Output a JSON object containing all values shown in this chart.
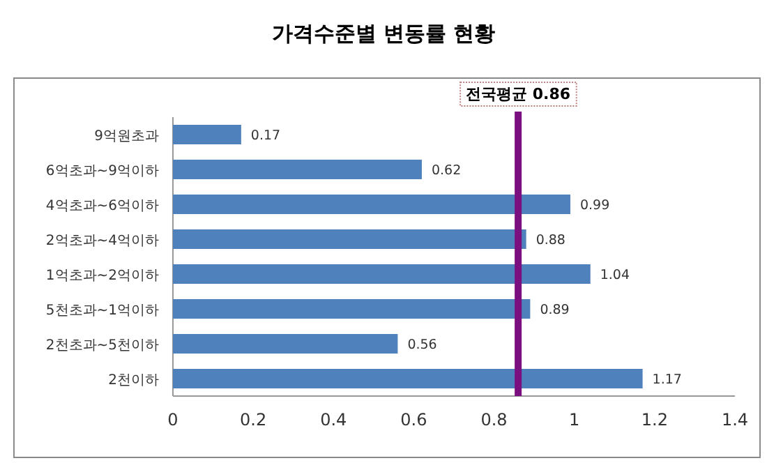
{
  "chart_data": {
    "type": "bar",
    "orientation": "horizontal",
    "title": "가격수준별 변동률 현황",
    "categories": [
      "9억원초과",
      "6억초과~9억이하",
      "4억초과~6억이하",
      "2억초과~4억이하",
      "1억초과~2억이하",
      "5천초과~1억이하",
      "2천초과~5천이하",
      "2천이하"
    ],
    "values": [
      0.17,
      0.62,
      0.99,
      0.88,
      1.04,
      0.89,
      0.56,
      1.17
    ],
    "color": "#4f81bd",
    "xlim": [
      0,
      1.4
    ],
    "xticks": [
      0,
      0.2,
      0.4,
      0.6,
      0.8,
      1,
      1.2,
      1.4
    ],
    "data_labels": true,
    "grid": false,
    "ref_lines": [
      {
        "axis": "x",
        "value": 0.86,
        "label": "전국평균  0.86",
        "color": "#7b0f7f"
      }
    ]
  }
}
